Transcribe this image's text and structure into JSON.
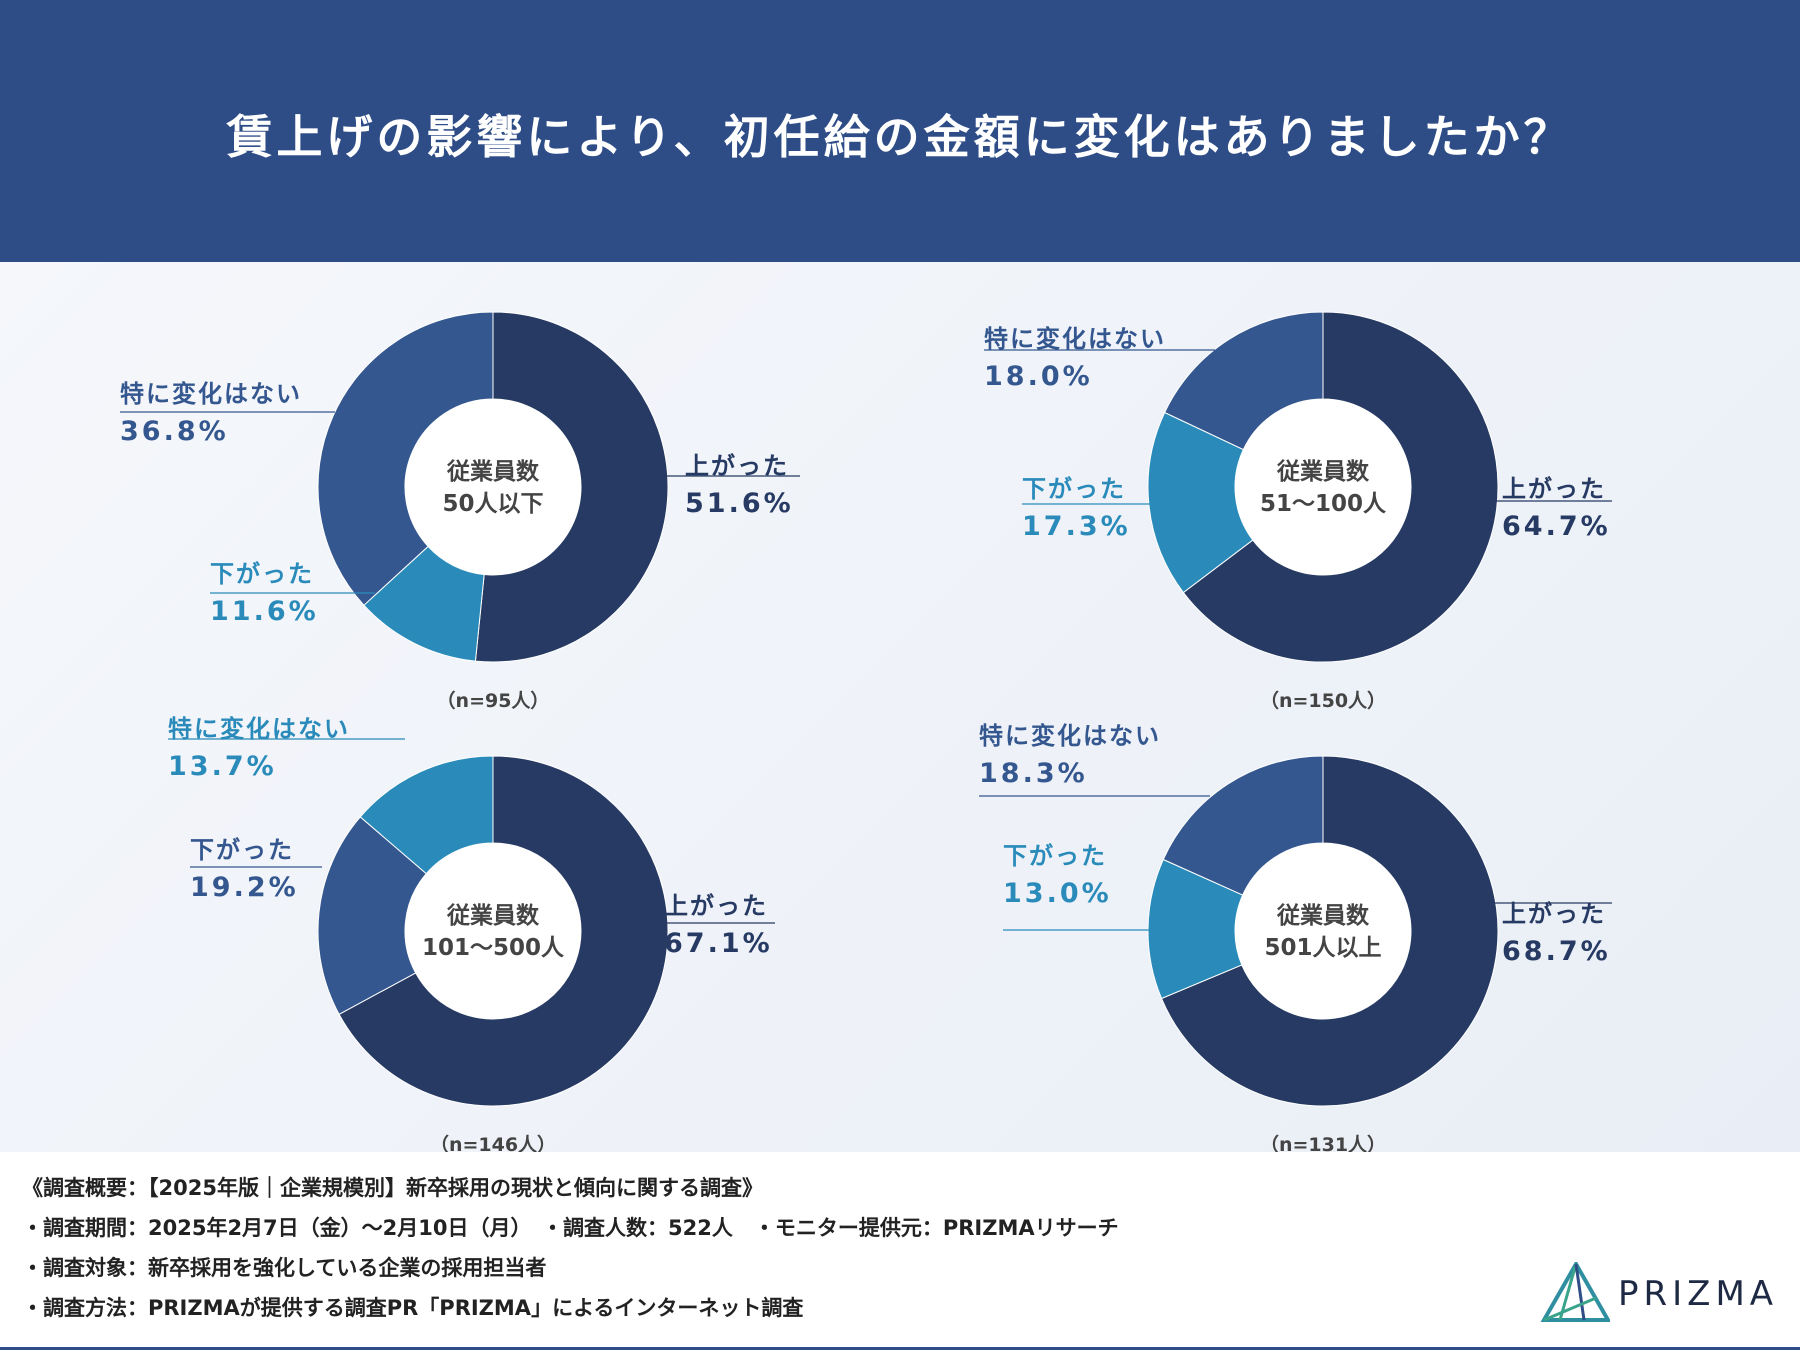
{
  "title": "賃上げの影響により、初任給の金額に変化はありましたか？",
  "colors": {
    "up": "#263a63",
    "none": "#34578f",
    "down": "#2a8bba",
    "header": "#2e4d87"
  },
  "chart_data": [
    {
      "type": "pie",
      "subtitle": "従業員数 50人以下",
      "center_label": [
        "従業員数",
        "50人以下"
      ],
      "n_label": "（n=95人）",
      "slices": [
        {
          "label": "上がった",
          "value": 51.6,
          "text": "51.6%"
        },
        {
          "label": "下がった",
          "value": 11.6,
          "text": "11.6%"
        },
        {
          "label": "特に変化はない",
          "value": 36.8,
          "text": "36.8%"
        }
      ],
      "slice_colors": [
        "up",
        "down",
        "none"
      ]
    },
    {
      "type": "pie",
      "subtitle": "従業員数 51〜100人",
      "center_label": [
        "従業員数",
        "51〜100人"
      ],
      "n_label": "（n=150人）",
      "slices": [
        {
          "label": "上がった",
          "value": 64.7,
          "text": "64.7%"
        },
        {
          "label": "下がった",
          "value": 17.3,
          "text": "17.3%"
        },
        {
          "label": "特に変化はない",
          "value": 18.0,
          "text": "18.0%"
        }
      ],
      "slice_colors": [
        "up",
        "down",
        "none"
      ]
    },
    {
      "type": "pie",
      "subtitle": "従業員数 101〜500人",
      "center_label": [
        "従業員数",
        "101〜500人"
      ],
      "n_label": "（n=146人）",
      "slices": [
        {
          "label": "上がった",
          "value": 67.1,
          "text": "67.1%"
        },
        {
          "label": "下がった",
          "value": 19.2,
          "text": "19.2%"
        },
        {
          "label": "特に変化はない",
          "value": 13.7,
          "text": "13.7%"
        }
      ],
      "slice_colors": [
        "up",
        "none",
        "down"
      ]
    },
    {
      "type": "pie",
      "subtitle": "従業員数 501人以上",
      "center_label": [
        "従業員数",
        "501人以上"
      ],
      "n_label": "（n=131人）",
      "slices": [
        {
          "label": "上がった",
          "value": 68.7,
          "text": "68.7%"
        },
        {
          "label": "下がった",
          "value": 13.0,
          "text": "13.0%"
        },
        {
          "label": "特に変化はない",
          "value": 18.3,
          "text": "18.3%"
        }
      ],
      "slice_colors": [
        "up",
        "down",
        "none"
      ]
    }
  ],
  "footer": {
    "line1": "《調査概要：【2025年版｜企業規模別】新卒採用の現状と傾向に関する調査》",
    "line2": "・調査期間：2025年2月7日（金）〜2月10日（月）　・調査人数：522人　・モニター提供元：PRIZMAリサーチ",
    "line3": "・調査対象：新卒採用を強化している企業の採用担当者",
    "line4": "・調査方法：PRIZMAが提供する調査PR「PRIZMA」によるインターネット調査"
  },
  "brand": {
    "name": "PRIZMA"
  }
}
